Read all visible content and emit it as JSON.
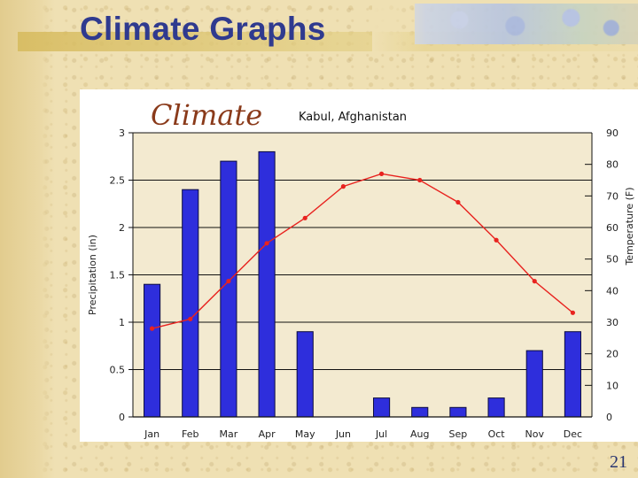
{
  "slide": {
    "title": "Climate Graphs",
    "page_number": "21"
  },
  "colors": {
    "title": "#2f3a8f",
    "bar": "#2e2edc",
    "line": "#e8231f",
    "plot_bg": "#f3ead0"
  },
  "chart_data": {
    "type": "bar",
    "title": "Climate",
    "subtitle": "Kabul, Afghanistan",
    "categories": [
      "Jan",
      "Feb",
      "Mar",
      "Apr",
      "May",
      "Jun",
      "Jul",
      "Aug",
      "Sep",
      "Oct",
      "Nov",
      "Dec"
    ],
    "series": [
      {
        "name": "Precipitation (in)",
        "type": "bar",
        "axis": "left",
        "values": [
          1.4,
          2.4,
          2.7,
          2.8,
          0.9,
          0.0,
          0.2,
          0.1,
          0.1,
          0.2,
          0.7,
          0.9
        ]
      },
      {
        "name": "Temperature (F)",
        "type": "line",
        "axis": "right",
        "values": [
          28,
          31,
          43,
          55,
          63,
          73,
          77,
          75,
          68,
          56,
          43,
          33
        ]
      }
    ],
    "ylabel": "Precipitation (in)",
    "ylabel_right": "Temperature (F)",
    "ylim": [
      0,
      3
    ],
    "ylim_right": [
      0,
      90
    ],
    "yticks": [
      "0",
      "0.5",
      "1",
      "1.5",
      "2",
      "2.5",
      "3"
    ],
    "yticks_right": [
      "0",
      "10",
      "20",
      "30",
      "40",
      "50",
      "60",
      "70",
      "80",
      "90"
    ],
    "grid": true
  }
}
